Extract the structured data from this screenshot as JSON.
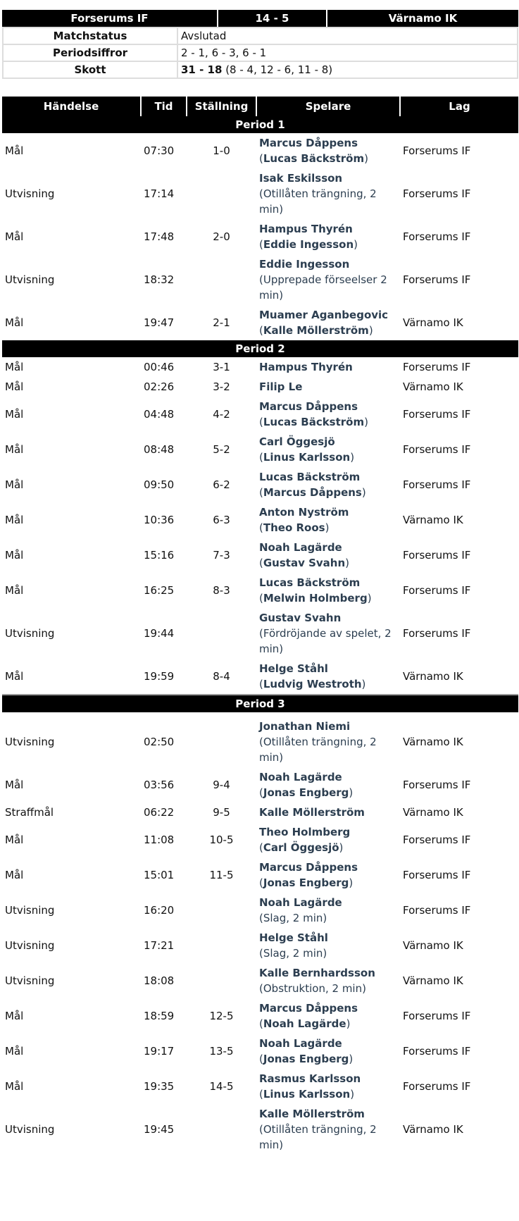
{
  "match": {
    "home": "Forserums IF",
    "score": "14 - 5",
    "away": "Värnamo IK"
  },
  "info": [
    {
      "label": "Matchstatus",
      "value": "Avslutad"
    },
    {
      "label": "Periodsiffror",
      "value": "2 - 1, 6 - 3, 6 - 1"
    },
    {
      "label": "Skott",
      "value_bold": "31 - 18",
      "value": " (8 - 4, 12 - 6, 11 - 8)"
    }
  ],
  "columns": [
    "Händelse",
    "Tid",
    "Ställning",
    "Spelare",
    "Lag"
  ],
  "periods": [
    {
      "title": "Period 1",
      "events": [
        {
          "type": "Mål",
          "time": "07:30",
          "score": "1-0",
          "player": "Marcus Dåppens",
          "assist": "Lucas Bäckström",
          "team": "Forserums IF"
        },
        {
          "type": "Utvisning",
          "time": "17:14",
          "score": "",
          "player": "Isak Eskilsson",
          "reason": "Otillåten trängning, 2 min",
          "team": "Forserums IF"
        },
        {
          "type": "Mål",
          "time": "17:48",
          "score": "2-0",
          "player": "Hampus Thyrén",
          "assist": "Eddie Ingesson",
          "team": "Forserums IF"
        },
        {
          "type": "Utvisning",
          "time": "18:32",
          "score": "",
          "player": "Eddie Ingesson",
          "reason": "Upprepade förseelser 2 min",
          "team": "Forserums IF"
        },
        {
          "type": "Mål",
          "time": "19:47",
          "score": "2-1",
          "player": "Muamer Aganbegovic",
          "assist": "Kalle Möllerström",
          "team": "Värnamo IK"
        }
      ]
    },
    {
      "title": "Period 2",
      "events": [
        {
          "type": "Mål",
          "time": "00:46",
          "score": "3-1",
          "player": "Hampus Thyrén",
          "team": "Forserums IF"
        },
        {
          "type": "Mål",
          "time": "02:26",
          "score": "3-2",
          "player": "Filip Le",
          "team": "Värnamo IK"
        },
        {
          "type": "Mål",
          "time": "04:48",
          "score": "4-2",
          "player": "Marcus Dåppens",
          "assist": "Lucas Bäckström",
          "team": "Forserums IF"
        },
        {
          "type": "Mål",
          "time": "08:48",
          "score": "5-2",
          "player": "Carl Öggesjö",
          "assist": "Linus Karlsson",
          "team": "Forserums IF"
        },
        {
          "type": "Mål",
          "time": "09:50",
          "score": "6-2",
          "player": "Lucas Bäckström",
          "assist": "Marcus Dåppens",
          "team": "Forserums IF"
        },
        {
          "type": "Mål",
          "time": "10:36",
          "score": "6-3",
          "player": "Anton Nyström",
          "assist": "Theo Roos",
          "team": "Värnamo IK"
        },
        {
          "type": "Mål",
          "time": "15:16",
          "score": "7-3",
          "player": "Noah Lagärde",
          "assist": "Gustav Svahn",
          "team": "Forserums IF"
        },
        {
          "type": "Mål",
          "time": "16:25",
          "score": "8-3",
          "player": "Lucas Bäckström",
          "assist": "Melwin Holmberg",
          "team": "Forserums IF"
        },
        {
          "type": "Utvisning",
          "time": "19:44",
          "score": "",
          "player": "Gustav Svahn",
          "reason": "Fördröjande av spelet, 2 min",
          "team": "Forserums IF"
        },
        {
          "type": "Mål",
          "time": "19:59",
          "score": "8-4",
          "player": "Helge Ståhl",
          "assist": "Ludvig Westroth",
          "team": "Värnamo IK"
        }
      ]
    },
    {
      "title": "Period 3",
      "events": [
        {
          "type": "Utvisning",
          "time": "02:50",
          "score": "",
          "player": "Jonathan Niemi",
          "reason": "Otillåten trängning, 2 min",
          "team": "Värnamo IK"
        },
        {
          "type": "Mål",
          "time": "03:56",
          "score": "9-4",
          "player": "Noah Lagärde",
          "assist": "Jonas Engberg",
          "team": "Forserums IF"
        },
        {
          "type": "Straffmål",
          "time": "06:22",
          "score": "9-5",
          "player": "Kalle Möllerström",
          "team": "Värnamo IK"
        },
        {
          "type": "Mål",
          "time": "11:08",
          "score": "10-5",
          "player": "Theo Holmberg",
          "assist": "Carl Öggesjö",
          "team": "Forserums IF"
        },
        {
          "type": "Mål",
          "time": "15:01",
          "score": "11-5",
          "player": "Marcus Dåppens",
          "assist": "Jonas Engberg",
          "team": "Forserums IF"
        },
        {
          "type": "Utvisning",
          "time": "16:20",
          "score": "",
          "player": "Noah Lagärde",
          "reason": "Slag, 2 min",
          "team": "Forserums IF"
        },
        {
          "type": "Utvisning",
          "time": "17:21",
          "score": "",
          "player": "Helge Ståhl",
          "reason": "Slag, 2 min",
          "team": "Värnamo IK"
        },
        {
          "type": "Utvisning",
          "time": "18:08",
          "score": "",
          "player": "Kalle Bernhardsson",
          "reason": "Obstruktion, 2 min",
          "team": "Värnamo IK"
        },
        {
          "type": "Mål",
          "time": "18:59",
          "score": "12-5",
          "player": "Marcus Dåppens",
          "assist": "Noah Lagärde",
          "team": "Forserums IF"
        },
        {
          "type": "Mål",
          "time": "19:17",
          "score": "13-5",
          "player": "Noah Lagärde",
          "assist": "Jonas Engberg",
          "team": "Forserums IF"
        },
        {
          "type": "Mål",
          "time": "19:35",
          "score": "14-5",
          "player": "Rasmus Karlsson",
          "assist": "Linus Karlsson",
          "team": "Forserums IF"
        },
        {
          "type": "Utvisning",
          "time": "19:45",
          "score": "",
          "player": "Kalle Möllerström",
          "reason": "Otillåten trängning, 2 min",
          "team": "Värnamo IK"
        }
      ]
    }
  ]
}
